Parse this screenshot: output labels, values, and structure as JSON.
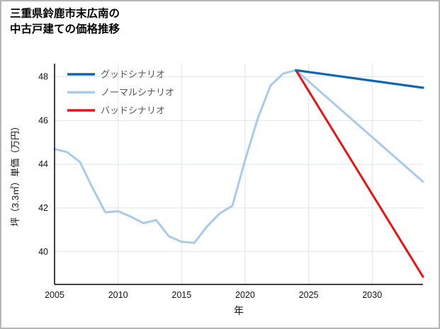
{
  "chart_data": {
    "type": "line",
    "title_line1": "三重県鈴鹿市末広南の",
    "title_line2": "中古戸建ての価格推移",
    "xlabel": "年",
    "ylabel": "坪（3.3㎡）単価（万円）",
    "xlim": [
      2005,
      2034
    ],
    "ylim": [
      38.5,
      48.6
    ],
    "xticks": [
      2005,
      2010,
      2015,
      2020,
      2025,
      2030
    ],
    "yticks": [
      40,
      42,
      44,
      46,
      48
    ],
    "grid": true,
    "legend_position": "upper-left-inside",
    "colors": {
      "grid": "#dde4ec",
      "axis": "#000000",
      "tick_label": "#111111",
      "legend_label": "#555555"
    },
    "series": [
      {
        "id": "good-scenario",
        "name": "グッドシナリオ",
        "color": "#1166b4",
        "width": 3.2,
        "z": 3,
        "x": [
          2024,
          2034
        ],
        "y": [
          48.3,
          47.5
        ]
      },
      {
        "id": "normal-scenario",
        "name": "ノーマルシナリオ",
        "color": "#a8cbec",
        "width": 3,
        "z": 1,
        "x": [
          2005,
          2006,
          2007,
          2008,
          2009,
          2010,
          2011,
          2012,
          2013,
          2014,
          2015,
          2016,
          2017,
          2018,
          2019,
          2020,
          2021,
          2022,
          2023,
          2024,
          2034
        ],
        "y": [
          44.7,
          44.55,
          44.1,
          42.9,
          41.8,
          41.85,
          41.6,
          41.3,
          41.45,
          40.7,
          40.45,
          40.4,
          41.15,
          41.75,
          42.1,
          44.2,
          46.1,
          47.6,
          48.15,
          48.3,
          43.2
        ]
      },
      {
        "id": "bad-scenario",
        "name": "バッドシナリオ",
        "color": "#ee1111",
        "width": 3,
        "z": 2,
        "x": [
          2024,
          2034
        ],
        "y": [
          48.3,
          38.85
        ]
      }
    ]
  }
}
